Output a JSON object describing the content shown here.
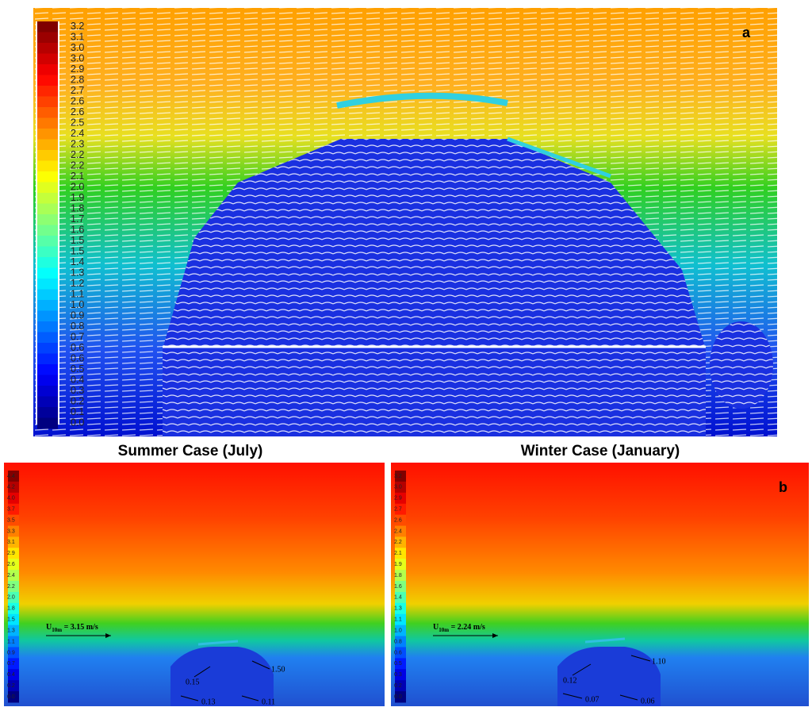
{
  "panel_a": {
    "label": "a",
    "colorbar": [
      "3.2",
      "3.1",
      "3.0",
      "3.0",
      "2.9",
      "2.8",
      "2.7",
      "2.6",
      "2.6",
      "2.5",
      "2.4",
      "2.3",
      "2.2",
      "2.2",
      "2.1",
      "2.0",
      "1.9",
      "1.8",
      "1.7",
      "1.6",
      "1.5",
      "1.5",
      "1.4",
      "1.3",
      "1.2",
      "1.1",
      "1.0",
      "0.9",
      "0.8",
      "0.7",
      "0.6",
      "0.6",
      "0.5",
      "0.4",
      "0.3",
      "0.2",
      "0.1",
      "0.0"
    ]
  },
  "panel_b": {
    "label": "b",
    "summer": {
      "title": "Summer Case (July)",
      "wind": {
        "symbol": "U",
        "subscript": "10m",
        "text": " = 3.15 m/s"
      },
      "annotations": [
        "1.50",
        "0.15",
        "0.13",
        "0.11"
      ],
      "colorbar": [
        "4.4",
        "4.2",
        "4.0",
        "3.7",
        "3.5",
        "3.3",
        "3.1",
        "2.9",
        "2.6",
        "2.4",
        "2.2",
        "2.0",
        "1.8",
        "1.5",
        "1.3",
        "1.1",
        "0.9",
        "0.7",
        "0.4",
        "0.2",
        "0.0"
      ]
    },
    "winter": {
      "title": "Winter Case (January)",
      "wind": {
        "symbol": "U",
        "subscript": "10m",
        "text": " = 2.24 m/s"
      },
      "annotations": [
        "1.10",
        "0.12",
        "0.07",
        "0.06"
      ],
      "colorbar": [
        "3.2",
        "3.0",
        "2.9",
        "2.7",
        "2.6",
        "2.4",
        "2.2",
        "2.1",
        "1.9",
        "1.8",
        "1.6",
        "1.4",
        "1.3",
        "1.1",
        "1.0",
        "0.8",
        "0.6",
        "0.5",
        "0.3",
        "0.2",
        "0.0"
      ]
    }
  }
}
